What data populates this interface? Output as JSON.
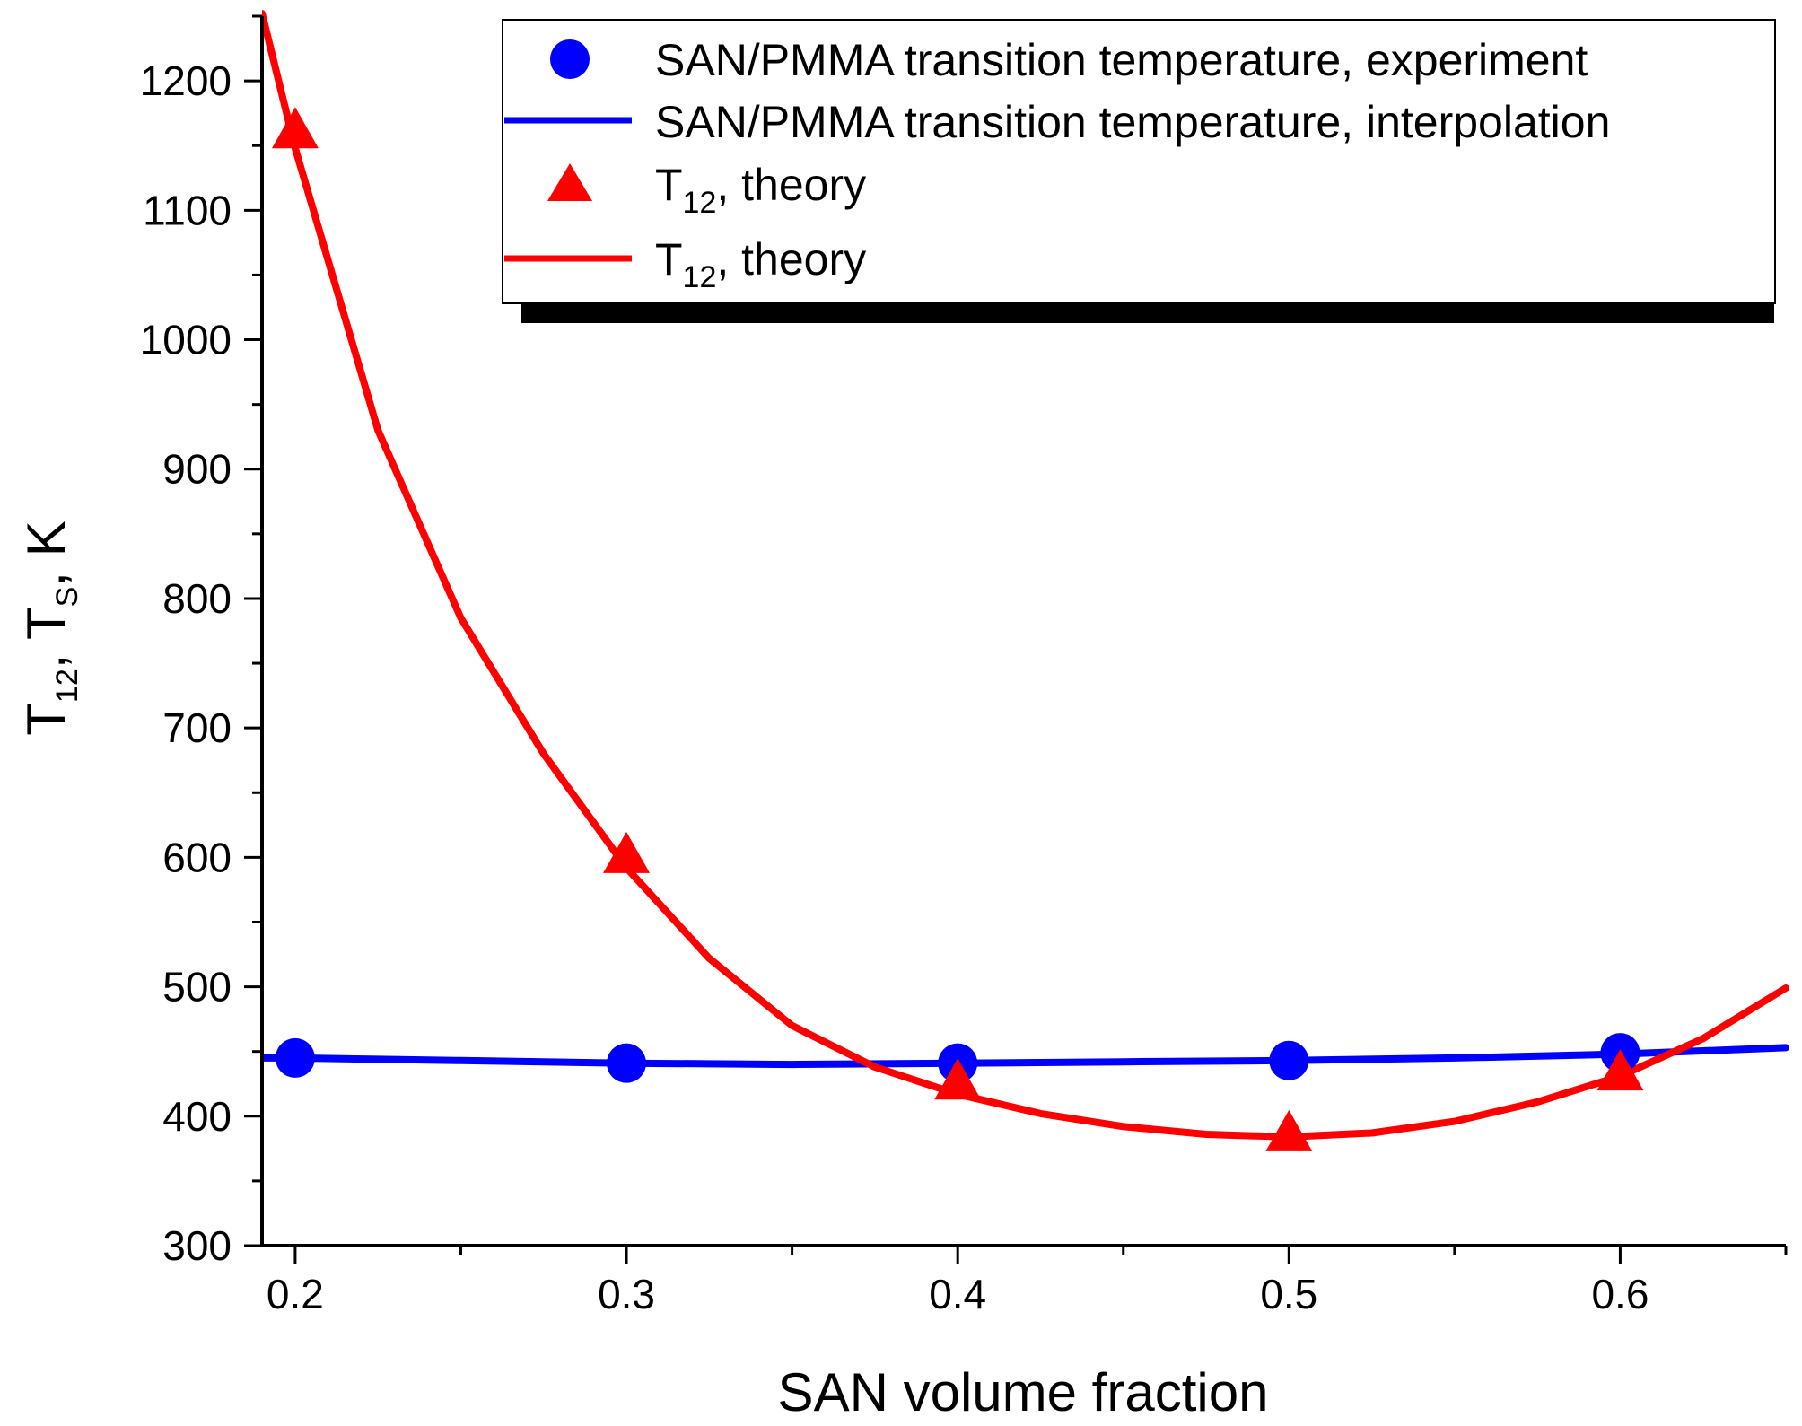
{
  "chart_data": {
    "type": "line",
    "title": "",
    "xlabel": "SAN volume fraction",
    "ylabel": {
      "main": "T",
      "sub1": "12",
      "mid": ", T",
      "sub2": "S",
      "tail": ", K"
    },
    "xlim": [
      0.19,
      0.65
    ],
    "ylim": [
      300,
      1250
    ],
    "x_ticks": [
      0.2,
      0.3,
      0.4,
      0.5,
      0.6
    ],
    "x_tick_labels": [
      "0.2",
      "0.3",
      "0.4",
      "0.5",
      "0.6"
    ],
    "x_minor_step": 0.05,
    "y_ticks": [
      300,
      400,
      500,
      600,
      700,
      800,
      900,
      1000,
      1100,
      1200
    ],
    "y_tick_labels": [
      "300",
      "400",
      "500",
      "600",
      "700",
      "800",
      "900",
      "1000",
      "1100",
      "1200"
    ],
    "y_minor_step": 50,
    "grid": false,
    "legend_position": "top-right",
    "series": [
      {
        "name": "SAN/PMMA transition temperature, experiment",
        "kind": "scatter",
        "marker": "circle",
        "color": "#0000ff",
        "x": [
          0.2,
          0.3,
          0.4,
          0.5,
          0.6
        ],
        "values": [
          445,
          441,
          441,
          443,
          449
        ]
      },
      {
        "name": "SAN/PMMA transition temperature, interpolation",
        "kind": "line",
        "color": "#0000ff",
        "x": [
          0.19,
          0.2,
          0.25,
          0.3,
          0.35,
          0.4,
          0.45,
          0.5,
          0.55,
          0.6,
          0.65
        ],
        "values": [
          445,
          445,
          443,
          441,
          440,
          441,
          442,
          443,
          445,
          448,
          453
        ]
      },
      {
        "name_main": "T",
        "name_sub": "12",
        "name_tail": ", theory",
        "kind": "scatter",
        "marker": "triangle",
        "color": "#ff0000",
        "x": [
          0.2,
          0.3,
          0.4,
          0.5,
          0.6
        ],
        "values": [
          1160,
          600,
          425,
          385,
          432
        ]
      },
      {
        "name_main": "T",
        "name_sub": "12",
        "name_tail": ", theory",
        "kind": "line",
        "color": "#ff0000",
        "x": [
          0.19,
          0.2,
          0.225,
          0.25,
          0.275,
          0.3,
          0.325,
          0.35,
          0.375,
          0.4,
          0.425,
          0.45,
          0.475,
          0.5,
          0.525,
          0.55,
          0.575,
          0.6,
          0.625,
          0.65
        ],
        "values": [
          1252,
          1148,
          930,
          785,
          680,
          592,
          522,
          470,
          438,
          417,
          402,
          392,
          386,
          384,
          387,
          396,
          411,
          431,
          460,
          499
        ]
      }
    ]
  }
}
